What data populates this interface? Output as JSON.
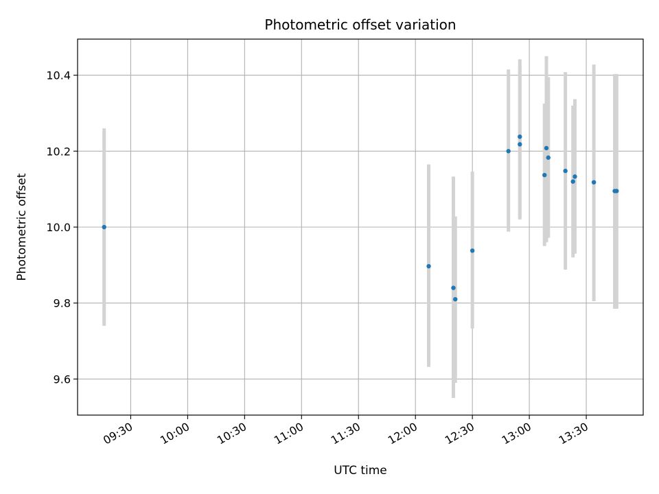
{
  "chart_data": {
    "type": "scatter",
    "title": "Photometric offset variation",
    "xlabel": "UTC time",
    "ylabel": "Photometric offset",
    "x_axis_kind": "time",
    "xlim": [
      "09:02",
      "14:00"
    ],
    "ylim": [
      9.505,
      10.495
    ],
    "x_ticks": [
      "09:30",
      "10:00",
      "10:30",
      "11:00",
      "11:30",
      "12:00",
      "12:30",
      "13:00",
      "13:30"
    ],
    "y_ticks": [
      9.6,
      9.8,
      10.0,
      10.2,
      10.4
    ],
    "y_tick_labels": [
      "9.6",
      "9.8",
      "10.0",
      "10.2",
      "10.4"
    ],
    "grid": true,
    "marker_color": "#1f77b4",
    "errorbar_color": "#d3d3d3",
    "points": [
      {
        "x": "09:16",
        "y": 10.0,
        "ylo": 9.74,
        "yhi": 10.26
      },
      {
        "x": "12:07",
        "y": 9.897,
        "ylo": 9.632,
        "yhi": 10.165
      },
      {
        "x": "12:20",
        "y": 9.84,
        "ylo": 9.55,
        "yhi": 10.133
      },
      {
        "x": "12:21",
        "y": 9.81,
        "ylo": 9.59,
        "yhi": 10.028
      },
      {
        "x": "12:30",
        "y": 9.938,
        "ylo": 9.733,
        "yhi": 10.146
      },
      {
        "x": "12:49",
        "y": 10.2,
        "ylo": 9.988,
        "yhi": 10.415
      },
      {
        "x": "12:55",
        "y": 10.238,
        "ylo": 10.025,
        "yhi": 10.442
      },
      {
        "x": "12:55",
        "y": 10.218,
        "ylo": 10.02,
        "yhi": 10.422
      },
      {
        "x": "13:08",
        "y": 10.137,
        "ylo": 9.95,
        "yhi": 10.325
      },
      {
        "x": "13:09",
        "y": 10.208,
        "ylo": 9.96,
        "yhi": 10.45
      },
      {
        "x": "13:10",
        "y": 10.183,
        "ylo": 9.972,
        "yhi": 10.395
      },
      {
        "x": "13:19",
        "y": 10.148,
        "ylo": 9.888,
        "yhi": 10.408
      },
      {
        "x": "13:23",
        "y": 10.12,
        "ylo": 9.92,
        "yhi": 10.32
      },
      {
        "x": "13:24",
        "y": 10.133,
        "ylo": 9.93,
        "yhi": 10.337
      },
      {
        "x": "13:34",
        "y": 10.118,
        "ylo": 9.805,
        "yhi": 10.428
      },
      {
        "x": "13:45",
        "y": 10.095,
        "ylo": 9.785,
        "yhi": 10.403
      },
      {
        "x": "13:46",
        "y": 10.095,
        "ylo": 9.785,
        "yhi": 10.403
      }
    ]
  }
}
